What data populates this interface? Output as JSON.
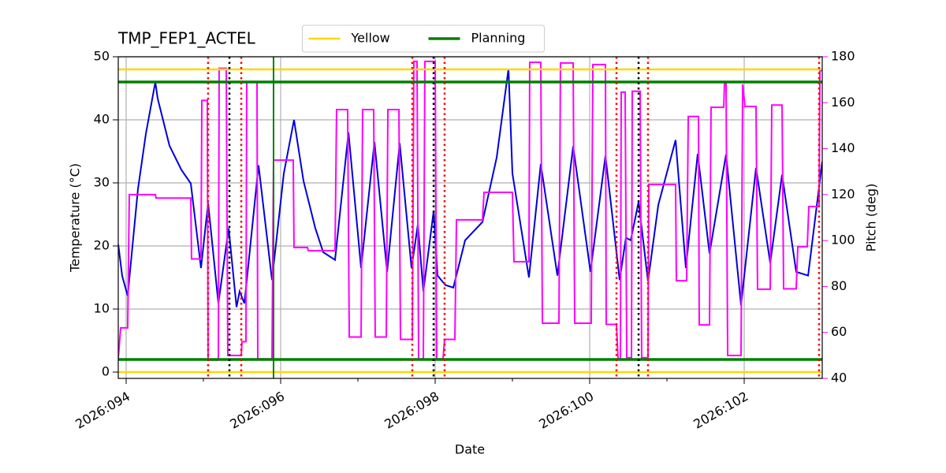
{
  "chart_data": {
    "type": "line",
    "title": "TMP_FEP1_ACTEL",
    "xlabel": "Date",
    "ylabel": "Temperature (°C)",
    "y2label": "Pitch (deg)",
    "y2color": "#ff00ff",
    "legend": "upper center",
    "grid": true,
    "xlim": [
      93.898,
      103.01
    ],
    "xticks": [
      {
        "value": 94,
        "label": "2026:094"
      },
      {
        "value": 96,
        "label": "2026:096"
      },
      {
        "value": 98,
        "label": "2026:098"
      },
      {
        "value": 100,
        "label": "2026:100"
      },
      {
        "value": 102,
        "label": "2026:102"
      }
    ],
    "xminorticks": [
      95,
      97,
      99,
      101
    ],
    "ylim": [
      -1,
      50
    ],
    "yticks": [
      0,
      10,
      20,
      30,
      40,
      50
    ],
    "y2lim": [
      40,
      180
    ],
    "y2ticks": [
      40,
      60,
      80,
      100,
      120,
      140,
      160,
      180
    ],
    "reference_lines": [
      {
        "name": "Yellow",
        "color": "#ffd700",
        "values": [
          48,
          0
        ]
      },
      {
        "name": "Planning",
        "color": "#008000",
        "values": [
          46,
          2
        ]
      }
    ],
    "vlines": [
      {
        "color": "#ff0000",
        "style": "dotted",
        "x": [
          95.061,
          95.49,
          97.704,
          98.122,
          100.347,
          100.755,
          102.969
        ]
      },
      {
        "color": "#000000",
        "style": "dotted",
        "x": [
          95.337,
          97.98,
          100.633
        ]
      },
      {
        "color": "#008000",
        "style": "solid",
        "x": [
          95.908
        ]
      }
    ],
    "series": [
      {
        "color": "#0000dd",
        "x": [
          93.898,
          93.949,
          94.02,
          94.153,
          94.255,
          94.378,
          94.408,
          94.561,
          94.714,
          94.837,
          94.969,
          95.061,
          95.194,
          95.327,
          95.429,
          95.469,
          95.531,
          95.714,
          95.888,
          96.041,
          96.173,
          96.296,
          96.449,
          96.551,
          96.704,
          96.878,
          97.041,
          97.214,
          97.378,
          97.541,
          97.694,
          97.776,
          97.847,
          97.98,
          98.031,
          98.133,
          98.235,
          98.388,
          98.612,
          98.796,
          98.949,
          99.0,
          99.214,
          99.367,
          99.582,
          99.786,
          100.01,
          100.204,
          100.388,
          100.469,
          100.531,
          100.633,
          100.755,
          100.888,
          101.112,
          101.245,
          101.398,
          101.551,
          101.765,
          101.959,
          102.153,
          102.337,
          102.49,
          102.673,
          102.827,
          103.01
        ],
        "values": [
          20.25,
          15.25,
          12.1,
          29,
          37.75,
          46,
          43.4,
          35.9,
          32.1,
          29.9,
          16.5,
          26.8,
          10.9,
          22.8,
          10.3,
          12.8,
          10.9,
          32.8,
          14.6,
          31.5,
          40,
          30.3,
          22.8,
          19,
          17.8,
          38,
          16.5,
          36.5,
          15.9,
          36.3,
          16.5,
          23.4,
          12.8,
          25.5,
          15.3,
          13.8,
          13.4,
          20.9,
          23.8,
          34,
          48.1,
          31.5,
          15,
          33,
          15.3,
          35.8,
          15.9,
          34.3,
          14.6,
          21.3,
          20.9,
          27,
          14.4,
          26.5,
          36.8,
          16.5,
          34.6,
          18.8,
          34.5,
          10.6,
          32.4,
          17.3,
          31.3,
          15.9,
          15.3,
          33.4
        ]
      },
      {
        "color": "#ff00ff",
        "axis": "y2",
        "x": [
          93.898,
          93.929,
          94.02,
          94.041,
          94.378,
          94.388,
          94.837,
          94.847,
          94.969,
          94.98,
          95.051,
          95.061,
          95.194,
          95.204,
          95.296,
          95.316,
          95.49,
          95.5,
          95.551,
          95.561,
          95.694,
          95.704,
          95.888,
          95.908,
          96.163,
          96.173,
          96.347,
          96.357,
          96.704,
          96.724,
          96.867,
          96.888,
          97.041,
          97.061,
          97.204,
          97.224,
          97.367,
          97.388,
          97.531,
          97.551,
          97.704,
          97.724,
          97.765,
          97.786,
          97.847,
          97.867,
          98.0,
          98.02,
          98.102,
          98.122,
          98.255,
          98.276,
          98.612,
          98.633,
          99.0,
          99.02,
          99.214,
          99.224,
          99.367,
          99.388,
          99.602,
          99.622,
          99.786,
          99.806,
          100.02,
          100.041,
          100.204,
          100.214,
          100.347,
          100.367,
          100.398,
          100.408,
          100.459,
          100.48,
          100.541,
          100.551,
          100.653,
          100.673,
          100.755,
          100.765,
          101.112,
          101.122,
          101.255,
          101.276,
          101.408,
          101.418,
          101.551,
          101.571,
          101.735,
          101.745,
          101.765,
          101.786,
          101.959,
          101.98,
          102.01,
          102.153,
          102.173,
          102.337,
          102.357,
          102.49,
          102.51,
          102.673,
          102.694,
          102.816,
          102.837,
          102.969,
          102.98,
          103.01
        ],
        "values": [
          48.6,
          62,
          62,
          120,
          120,
          118.5,
          118.5,
          92,
          92,
          161,
          161,
          48,
          48,
          175,
          175,
          50,
          50,
          56,
          56,
          169,
          169,
          48.5,
          48.5,
          135,
          135,
          97,
          97,
          95.6,
          95.6,
          157,
          157,
          58,
          58,
          157,
          157,
          58,
          58,
          157,
          157,
          57,
          57,
          178,
          178,
          48.5,
          48.5,
          178,
          178,
          48.5,
          48.5,
          57,
          57,
          109,
          109,
          121,
          121,
          90.8,
          90.8,
          177.6,
          177.6,
          64,
          64,
          177.3,
          177.3,
          64,
          64,
          176.6,
          176.6,
          63.5,
          63.5,
          48.5,
          48.5,
          164.6,
          164.6,
          49,
          49,
          165,
          165,
          49,
          49,
          124.4,
          124.4,
          82.5,
          82.5,
          154,
          154,
          63.3,
          63.3,
          158,
          158,
          169,
          169,
          50,
          50,
          168,
          158.4,
          158.4,
          78.8,
          78.8,
          159,
          159,
          79,
          79,
          97.3,
          97.3,
          114.8,
          114.8,
          174,
          174
        ]
      }
    ]
  }
}
